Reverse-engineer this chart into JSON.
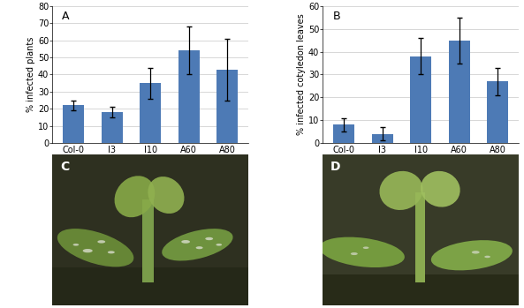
{
  "panel_A": {
    "label": "A",
    "categories": [
      "Col-0",
      "I3",
      "I10",
      "A60",
      "A80"
    ],
    "values": [
      22,
      18,
      35,
      54,
      43
    ],
    "errors": [
      3,
      3,
      9,
      14,
      18
    ],
    "ylabel": "% infected plants",
    "ylim": [
      0,
      80
    ],
    "yticks": [
      0,
      10,
      20,
      30,
      40,
      50,
      60,
      70,
      80
    ],
    "bar_color": "#4d7ab5",
    "bar_width": 0.55
  },
  "panel_B": {
    "label": "B",
    "categories": [
      "Col-0",
      "I3",
      "I10",
      "A60",
      "A80"
    ],
    "values": [
      8,
      4,
      38,
      45,
      27
    ],
    "errors": [
      3,
      3,
      8,
      10,
      6
    ],
    "ylabel": "% infected cotyledon leaves",
    "ylim": [
      0,
      60
    ],
    "yticks": [
      0,
      10,
      20,
      30,
      40,
      50,
      60
    ],
    "bar_color": "#4d7ab5",
    "bar_width": 0.55
  },
  "panel_C_label": "C",
  "panel_D_label": "D",
  "background_color": "#ffffff",
  "photo_C_bg": "#3a3d2e",
  "photo_D_bg": "#4a4d38"
}
